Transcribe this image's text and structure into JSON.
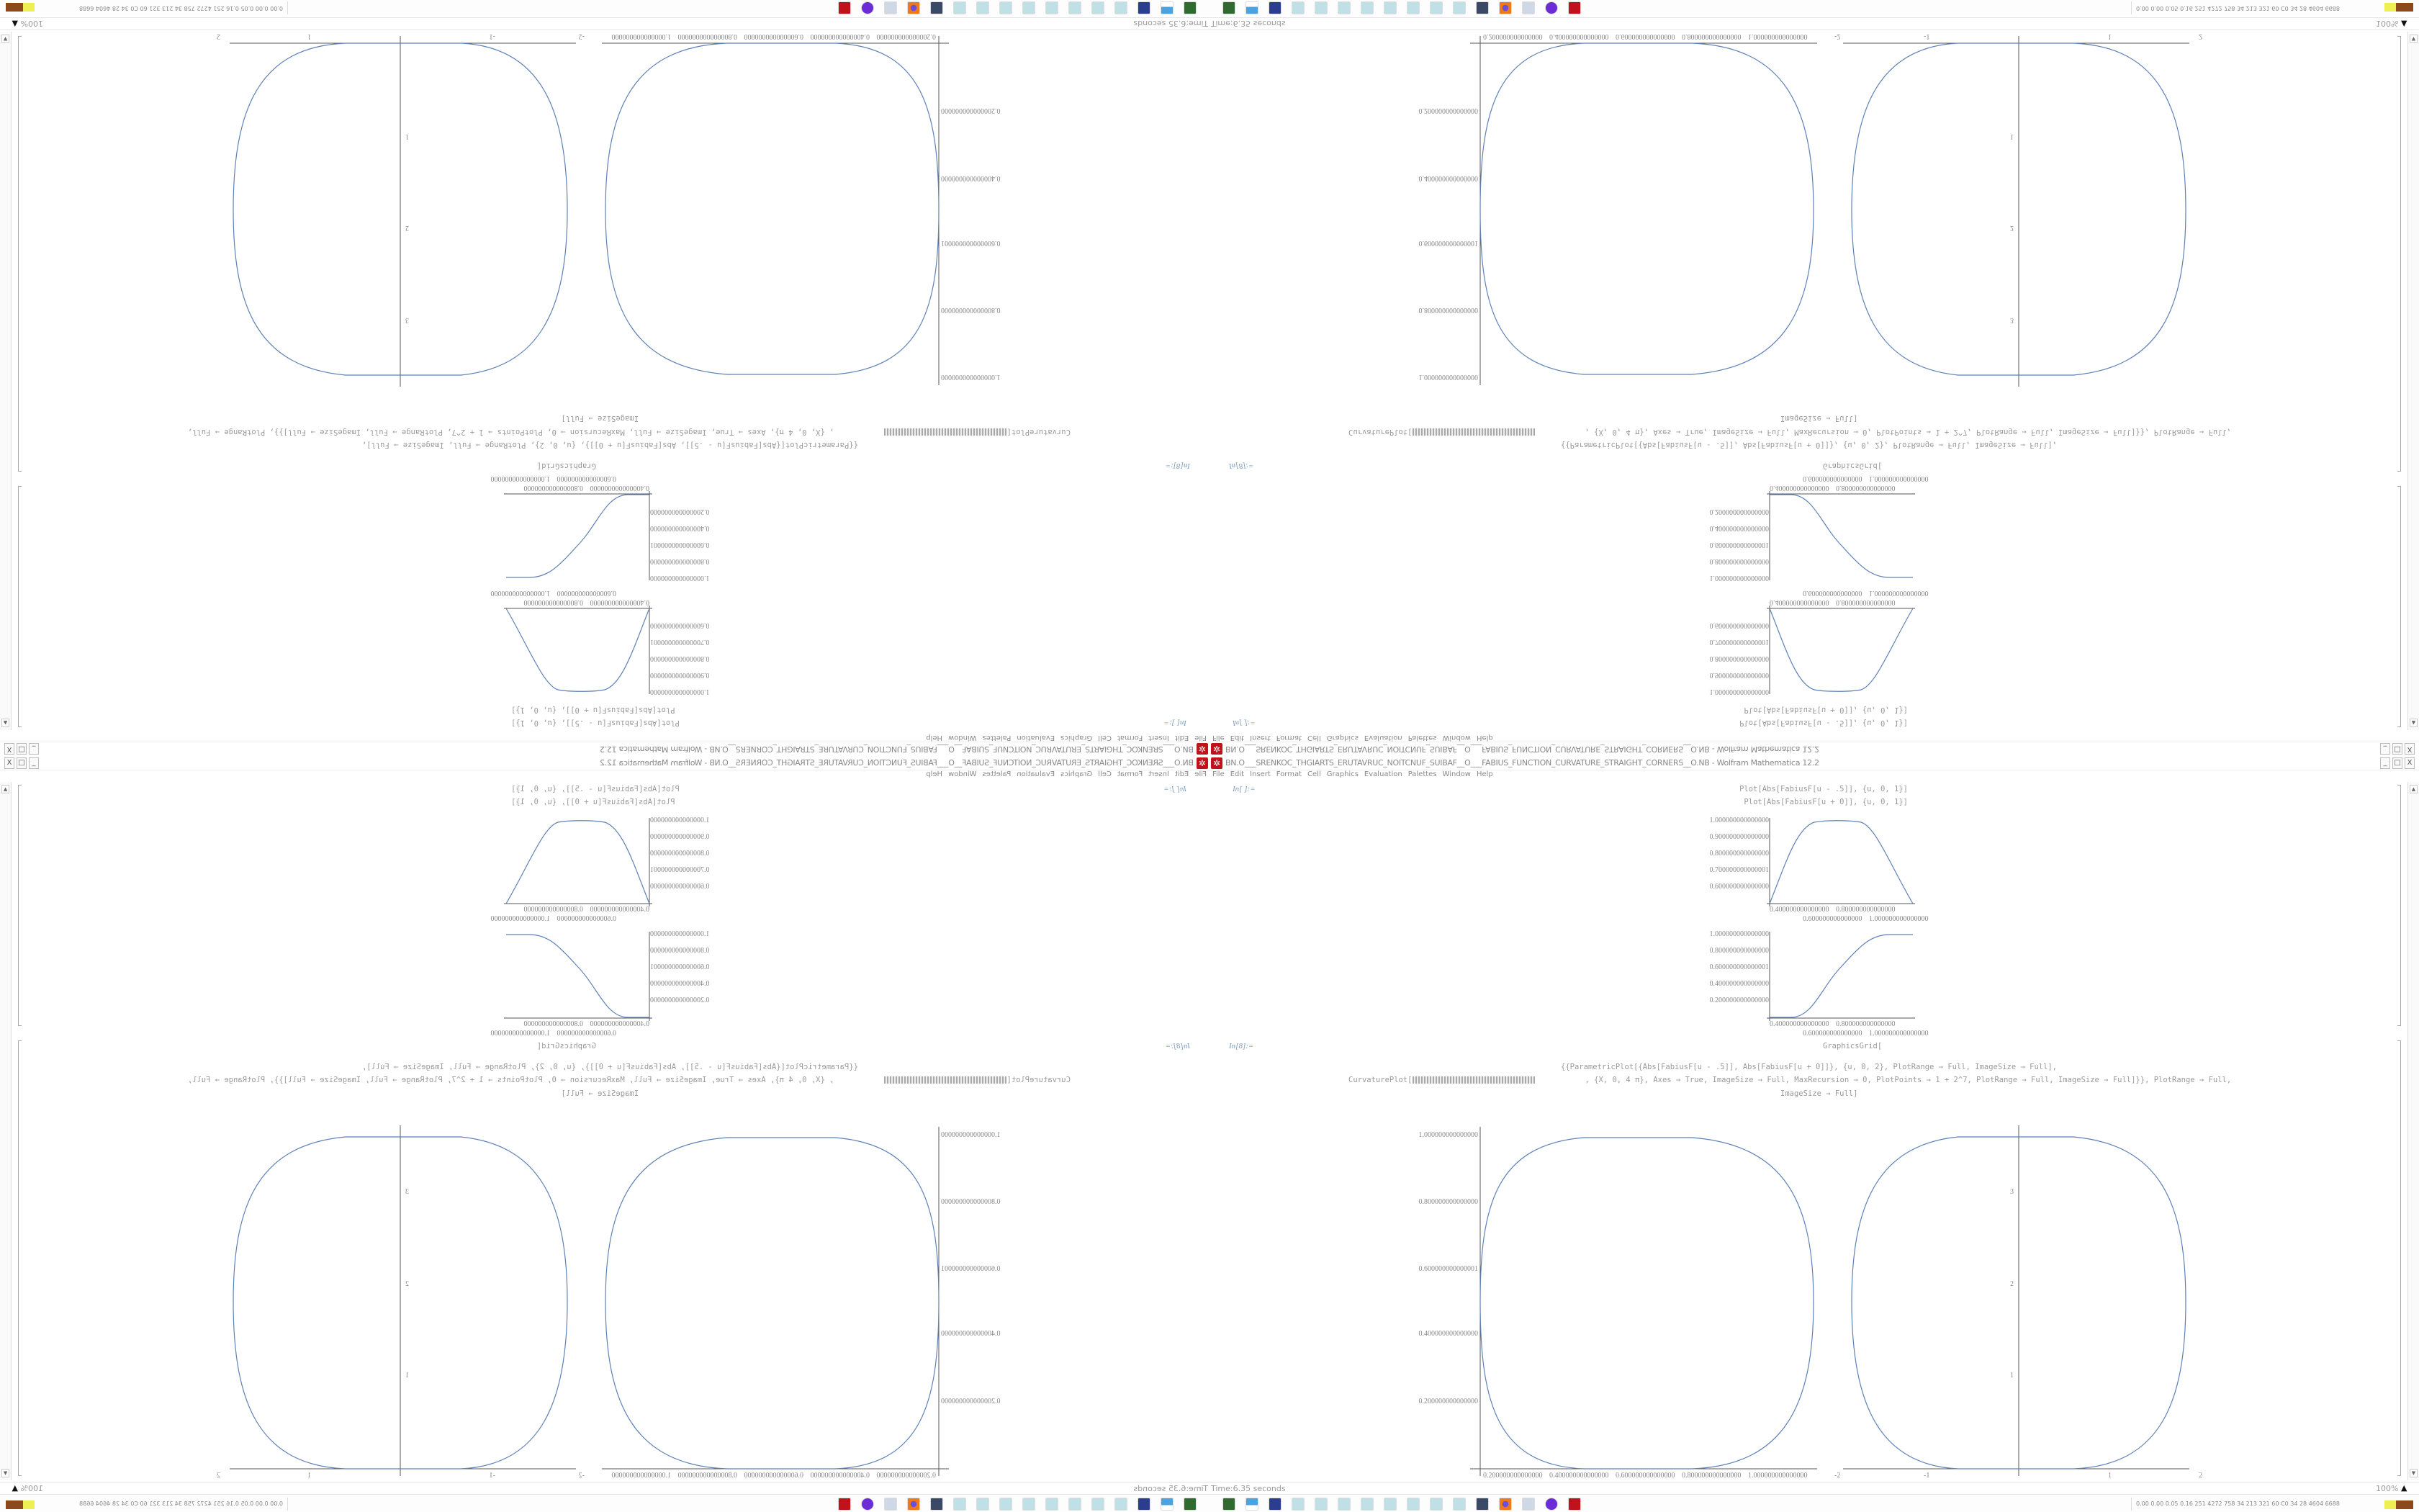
{
  "window": {
    "title": "BN.O___SRENKOC_THGIARTS_ERUTAVRUC_NOITCNUF_SUIBAF__O___FABIUS_FUNCTION_CURVATURE_STRAIGHT_CORNERS__O.NB - Wolfram Mathematica 12.2",
    "minimize": "_",
    "maximize": "□",
    "close": "X"
  },
  "menu": [
    "File",
    "Edit",
    "Insert",
    "Format",
    "Cell",
    "Graphics",
    "Evaluation",
    "Palettes",
    "Window",
    "Help"
  ],
  "cell1": {
    "label": "In[ ]:=",
    "lines": [
      "Plot[Abs[FabiusF[u - .5]], {u, 0, 1}]",
      "Plot[Abs[FabiusF[u + 0]], {u, 0, 1}]"
    ],
    "plot1": {
      "yticks": [
        "1.000000000000000",
        "0.900000000000000",
        "0.800000000000000",
        "0.700000000000001",
        "0.600000000000000"
      ],
      "xticks": [
        "0.400000000000000",
        "0.600000000000000",
        "0.800000000000000",
        "1.000000000000000"
      ]
    },
    "plot2": {
      "yticks": [
        "1.000000000000000",
        "0.800000000000000",
        "0.600000000000001",
        "0.400000000000000",
        "0.200000000000000"
      ],
      "xticks": [
        "0.400000000000000",
        "0.600000000000000",
        "0.800000000000000",
        "1.000000000000000"
      ]
    }
  },
  "cell2": {
    "label": "In[8]:=",
    "line1": "GraphicsGrid[",
    "line2": "{{ParametricPlot[{Abs[FabiusF[u - .5]], Abs[FabiusF[u + 0]]}, {u, 0, 2}, PlotRange → Full, ImageSize → Full],",
    "line3a": "CurvaturePlot[",
    "line3b": ", {X, 0, 4 π}, Axes → True, ImageSize → Full, MaxRecursion → 0, PlotPoints → 1 + 2^7, PlotRange → Full, ImageSize → Full]}}, PlotRange → Full,",
    "line4": "ImageSize → Full]",
    "left_plot": {
      "yticks": [
        "1.000000000000000",
        "0.800000000000000",
        "0.600000000000001",
        "0.400000000000000",
        "0.200000000000000"
      ],
      "xticks": [
        "0.200000000000000",
        "0.400000000000000",
        "0.600000000000000",
        "0.800000000000000",
        "1.000000000000000"
      ]
    },
    "right_plot": {
      "yticks": [
        "3",
        "2",
        "1"
      ],
      "xticks": [
        "-2",
        "-1",
        "1",
        "2"
      ]
    }
  },
  "status": {
    "time": "Time:6.35 seconds",
    "zoom": "100%"
  },
  "taskbar": {
    "icons": [
      "device-icon",
      "monitor-icon",
      "floppy-icon",
      "notebook-icon",
      "notebook-icon",
      "notebook-icon",
      "notebook-icon",
      "notebook-icon",
      "notebook-icon",
      "notebook-icon",
      "notebook-icon",
      "app-icon",
      "firefox-icon",
      "document-icon",
      "purple-app-icon",
      "mathematica-icon"
    ],
    "tray": "0.00 0.00 0.05 0.16 251 4272 758 34 213 321 60 C0 34 28 4604 6688"
  },
  "colors": {
    "curve": "#5e81b5",
    "mathematica_red": "#c0121b"
  }
}
